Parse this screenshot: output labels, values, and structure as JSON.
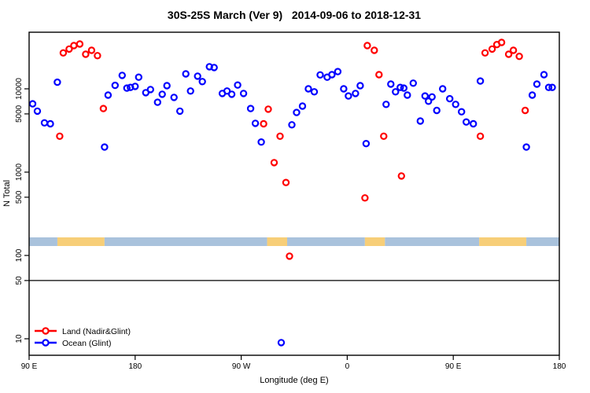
{
  "chart_data": {
    "type": "scatter",
    "title": "30S-25S March (Ver 9)   2014-09-06 to 2018-12-31",
    "xlabel": "Longitude (deg E)",
    "ylabel": "N Total",
    "x_axis": {
      "min": 90,
      "max": 540,
      "note": "longitude axis wraps: 90E -> 180 -> 90W -> 0 -> 90E -> 180",
      "ticks": [
        {
          "v": 90,
          "label": "90 E"
        },
        {
          "v": 180,
          "label": "180"
        },
        {
          "v": 270,
          "label": "90 W"
        },
        {
          "v": 360,
          "label": "0"
        },
        {
          "v": 450,
          "label": "90 E"
        },
        {
          "v": 540,
          "label": "180"
        }
      ]
    },
    "y_axis": {
      "scale": "log10",
      "min": 6,
      "max": 49000,
      "ticks": [
        {
          "v": 10,
          "label": "10"
        },
        {
          "v": 50,
          "label": "50"
        },
        {
          "v": 100,
          "label": "100"
        },
        {
          "v": 500,
          "label": "500"
        },
        {
          "v": 1000,
          "label": "1000"
        },
        {
          "v": 5000,
          "label": "5000"
        },
        {
          "v": 10000,
          "label": "10000"
        }
      ]
    },
    "grid": false,
    "reference_line": {
      "y": 50,
      "color": "#000000"
    },
    "map_band": {
      "description": "land/ocean strip along longitude",
      "ocean_color": "#a9c2dc",
      "land_color": "#f7ce78",
      "segments": [
        {
          "type": "ocean",
          "from": 90,
          "to": 114
        },
        {
          "type": "land",
          "from": 114,
          "to": 154
        },
        {
          "type": "ocean",
          "from": 154,
          "to": 292
        },
        {
          "type": "land",
          "from": 292,
          "to": 309
        },
        {
          "type": "ocean",
          "from": 309,
          "to": 375
        },
        {
          "type": "land",
          "from": 375,
          "to": 392
        },
        {
          "type": "ocean",
          "from": 392,
          "to": 472
        },
        {
          "type": "land",
          "from": 472,
          "to": 512
        },
        {
          "type": "ocean",
          "from": 512,
          "to": 540
        }
      ]
    },
    "legend": {
      "position": "bottom-left"
    },
    "series": [
      {
        "name": "Land (Nadir&Glint)",
        "color": "#ff0000",
        "marker": "open-circle",
        "points": [
          [
            116,
            2700
          ],
          [
            119,
            27000
          ],
          [
            124,
            30000
          ],
          [
            128,
            33000
          ],
          [
            133,
            34500
          ],
          [
            138,
            26000
          ],
          [
            143,
            29000
          ],
          [
            148,
            25000
          ],
          [
            153,
            5800
          ],
          [
            289,
            3800
          ],
          [
            293,
            5700
          ],
          [
            298,
            1300
          ],
          [
            303,
            2700
          ],
          [
            308,
            750
          ],
          [
            311,
            98
          ],
          [
            375,
            490
          ],
          [
            377,
            33000
          ],
          [
            383,
            29000
          ],
          [
            387,
            14800
          ],
          [
            391,
            2700
          ],
          [
            406,
            900
          ],
          [
            473,
            2700
          ],
          [
            477,
            27000
          ],
          [
            483,
            30000
          ],
          [
            487,
            34000
          ],
          [
            491,
            36000
          ],
          [
            497,
            26000
          ],
          [
            501,
            29000
          ],
          [
            506,
            24500
          ],
          [
            511,
            5500
          ]
        ]
      },
      {
        "name": "Ocean (Glint)",
        "color": "#0000ff",
        "marker": "open-circle",
        "points": [
          [
            93,
            6600
          ],
          [
            97,
            5400
          ],
          [
            103,
            3900
          ],
          [
            108,
            3800
          ],
          [
            114,
            12000
          ],
          [
            154,
            2000
          ],
          [
            157,
            8400
          ],
          [
            163,
            11000
          ],
          [
            169,
            14500
          ],
          [
            173,
            10200
          ],
          [
            176,
            10400
          ],
          [
            180,
            10700
          ],
          [
            183,
            13800
          ],
          [
            189,
            9000
          ],
          [
            193,
            9800
          ],
          [
            199,
            6900
          ],
          [
            203,
            8600
          ],
          [
            207,
            10900
          ],
          [
            213,
            7900
          ],
          [
            218,
            5400
          ],
          [
            223,
            15100
          ],
          [
            227,
            9400
          ],
          [
            233,
            14200
          ],
          [
            237,
            12200
          ],
          [
            243,
            18400
          ],
          [
            247,
            18000
          ],
          [
            254,
            8800
          ],
          [
            258,
            9400
          ],
          [
            262,
            8600
          ],
          [
            267,
            11100
          ],
          [
            272,
            8800
          ],
          [
            278,
            5800
          ],
          [
            282,
            3850
          ],
          [
            287,
            2300
          ],
          [
            304,
            9
          ],
          [
            313,
            3700
          ],
          [
            317,
            5200
          ],
          [
            322,
            6200
          ],
          [
            327,
            10000
          ],
          [
            332,
            9200
          ],
          [
            337,
            14700
          ],
          [
            343,
            13800
          ],
          [
            347,
            14800
          ],
          [
            352,
            16100
          ],
          [
            357,
            10000
          ],
          [
            361,
            8200
          ],
          [
            367,
            8800
          ],
          [
            371,
            10900
          ],
          [
            376,
            2200
          ],
          [
            393,
            6500
          ],
          [
            397,
            11400
          ],
          [
            401,
            9200
          ],
          [
            405,
            10400
          ],
          [
            408,
            10200
          ],
          [
            411,
            8400
          ],
          [
            416,
            11700
          ],
          [
            422,
            4100
          ],
          [
            426,
            8200
          ],
          [
            429,
            7100
          ],
          [
            432,
            8000
          ],
          [
            436,
            5500
          ],
          [
            441,
            10000
          ],
          [
            447,
            7600
          ],
          [
            452,
            6500
          ],
          [
            457,
            5300
          ],
          [
            461,
            4000
          ],
          [
            467,
            3800
          ],
          [
            473,
            12400
          ],
          [
            512,
            2000
          ],
          [
            517,
            8400
          ],
          [
            521,
            11400
          ],
          [
            527,
            14800
          ],
          [
            531,
            10400
          ],
          [
            534,
            10400
          ]
        ]
      }
    ]
  }
}
